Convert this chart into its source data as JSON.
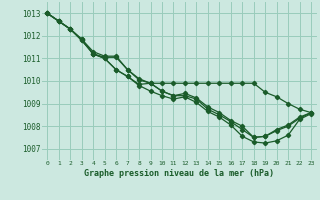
{
  "xlabel": "Graphe pression niveau de la mer (hPa)",
  "xlim": [
    -0.5,
    23.5
  ],
  "ylim": [
    1006.5,
    1013.5
  ],
  "yticks": [
    1007,
    1008,
    1009,
    1010,
    1011,
    1012,
    1013
  ],
  "xticks": [
    0,
    1,
    2,
    3,
    4,
    5,
    6,
    7,
    8,
    9,
    10,
    11,
    12,
    13,
    14,
    15,
    16,
    17,
    18,
    19,
    20,
    21,
    22,
    23
  ],
  "bg_color": "#cce8e0",
  "grid_color": "#99ccbb",
  "line_color": "#1a5c2a",
  "marker": "D",
  "marker_size": 2.2,
  "linewidth": 0.9,
  "curves": [
    [
      1013.0,
      1012.65,
      1012.3,
      1011.8,
      1011.2,
      1011.0,
      1010.5,
      1010.2,
      1009.85,
      1009.9,
      1009.9,
      1009.9,
      1009.9,
      1009.9,
      1009.9,
      1009.9,
      1009.9,
      1009.9,
      1009.9,
      1009.5,
      1009.3,
      1009.0,
      1008.75,
      1008.6
    ],
    [
      1013.0,
      1012.65,
      1012.3,
      1011.85,
      1011.2,
      1011.05,
      1011.05,
      1010.5,
      1010.05,
      1009.9,
      1009.55,
      1009.35,
      1009.45,
      1009.25,
      1008.85,
      1008.6,
      1008.25,
      1008.0,
      1007.5,
      1007.55,
      1007.8,
      1008.0,
      1008.35,
      1008.6
    ],
    [
      1013.0,
      1012.65,
      1012.3,
      1011.85,
      1011.3,
      1011.1,
      1011.1,
      1010.5,
      1010.1,
      1009.9,
      1009.55,
      1009.35,
      1009.35,
      1009.2,
      1008.75,
      1008.5,
      1008.2,
      1007.85,
      1007.5,
      1007.55,
      1007.85,
      1008.05,
      1008.4,
      1008.6
    ],
    [
      1013.0,
      1012.65,
      1012.3,
      1011.8,
      1011.2,
      1011.0,
      1010.5,
      1010.2,
      1009.8,
      1009.55,
      1009.35,
      1009.2,
      1009.3,
      1009.05,
      1008.65,
      1008.4,
      1008.05,
      1007.55,
      1007.3,
      1007.25,
      1007.35,
      1007.6,
      1008.3,
      1008.55
    ]
  ]
}
